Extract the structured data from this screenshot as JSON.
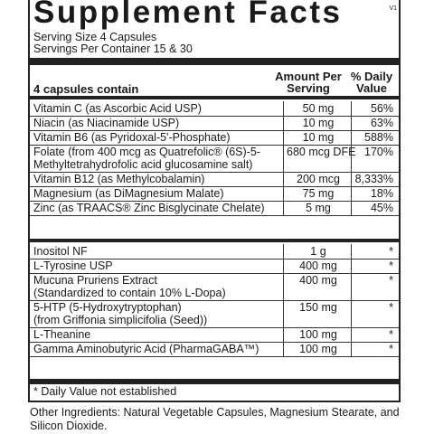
{
  "label": {
    "title": "Supplement Facts",
    "version_mark": "V1",
    "serving_size": "Serving Size 4 Capsules",
    "servings_per_container": "Servings Per Container 15 & 30",
    "header_contains": "4 capsules contain",
    "header_amount_line1": "Amount Per",
    "header_amount_line2": "Serving",
    "header_dv_line1": "% Daily",
    "header_dv_line2": "Value",
    "rows_top": [
      {
        "name": "Vitamin C (as Ascorbic Acid USP)",
        "amount": "50 mg",
        "dv": "56%"
      },
      {
        "name": "Niacin (as Niacinamide USP)",
        "amount": "10 mg",
        "dv": "63%"
      },
      {
        "name": "Vitamin B6 (as Pyridoxal-5'-Phosphate)",
        "amount": "10 mg",
        "dv": "588%"
      },
      {
        "name": "Folate (from 400 mcg as Quatrefolic® (6S)-5-",
        "name2": "Methyltetrahydrofolic acid glucosamine salt)",
        "amount": "680 mcg DFE",
        "dv": "170%"
      },
      {
        "name": "Vitamin B12 (as Methylcobalamin)",
        "amount": "200 mcg",
        "dv": "8,333%"
      },
      {
        "name": "Magnesium (as DiMagnesium Malate)",
        "amount": "75 mg",
        "dv": "18%"
      },
      {
        "name": "Zinc (as TRAACS® Zinc Bisglycinate Chelate)",
        "amount": "5 mg",
        "dv": "45%"
      }
    ],
    "rows_bottom": [
      {
        "name": "Inositol NF",
        "amount": "1 g",
        "dv": "*"
      },
      {
        "name": "L-Tyrosine USP",
        "amount": "400 mg",
        "dv": "*"
      },
      {
        "name": "Mucuna Pruriens Extract",
        "name2": "(Standardized to contain 10% L-Dopa)",
        "amount": "400 mg",
        "dv": "*"
      },
      {
        "name": "5-HTP (5-Hydroxytryptophan)",
        "name2": "(from Griffonia simplicifolia (Seed))",
        "amount": "150 mg",
        "dv": "*"
      },
      {
        "name": "L-Theanine",
        "amount": "100 mg",
        "dv": "*"
      },
      {
        "name": "Gamma Aminobutyric Acid (PharmaGABA™)",
        "amount": "100 mg",
        "dv": "*"
      }
    ],
    "footnote": "* Daily Value not established",
    "other_ingredients": "Other Ingredients: Natural Vegetable Capsules, Magnesium Stearate, and Silicon Dioxide."
  }
}
